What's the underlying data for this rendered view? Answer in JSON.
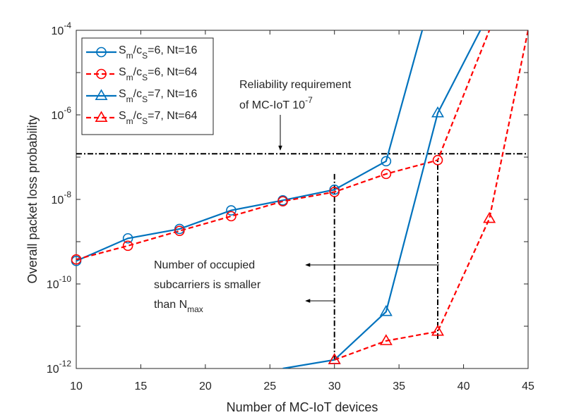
{
  "chart_data": {
    "type": "line",
    "title": "",
    "xlabel": "Number of MC-IoT devices",
    "ylabel": "Overall packet loss probability",
    "xlim": [
      10,
      45
    ],
    "ylim": [
      1e-12,
      0.0001
    ],
    "yscale": "log",
    "grid": false,
    "legend_position": "top-left",
    "x_ticks": [
      "10",
      "15",
      "20",
      "25",
      "30",
      "35",
      "40",
      "45"
    ],
    "y_ticks": [
      {
        "base": "10",
        "exp": "-12",
        "value": 1e-12
      },
      {
        "base": "10",
        "exp": "-10",
        "value": 1e-10
      },
      {
        "base": "10",
        "exp": "-8",
        "value": 1e-08
      },
      {
        "base": "10",
        "exp": "-6",
        "value": 1e-06
      },
      {
        "base": "10",
        "exp": "-4",
        "value": 0.0001
      }
    ],
    "series": [
      {
        "name": "Sm/cS=6, Nt=16",
        "label": {
          "a": "S",
          "a_sub": "m",
          "b": "/c",
          "b_sub": "S",
          "c": "=6, Nt=16"
        },
        "color": "#0072BD",
        "dash": "solid",
        "marker": "circle",
        "x": [
          10,
          14,
          18,
          22,
          26,
          30,
          34,
          36.8
        ],
        "y": [
          3.5e-10,
          1.2e-09,
          2e-09,
          5.5e-09,
          9.5e-09,
          1.7e-08,
          8e-08,
          0.0001
        ],
        "marker_x": [
          10,
          14,
          18,
          22,
          26,
          30,
          34
        ]
      },
      {
        "name": "Sm/cS=6, Nt=64",
        "label": {
          "a": "S",
          "a_sub": "m",
          "b": "/c",
          "b_sub": "S",
          "c": "=6, Nt=64"
        },
        "color": "#FF0000",
        "dash": "dashed",
        "marker": "circle",
        "x": [
          10,
          14,
          18,
          22,
          26,
          30,
          34,
          38,
          42
        ],
        "y": [
          3.8e-10,
          8e-10,
          1.8e-09,
          4e-09,
          9e-09,
          1.5e-08,
          4e-08,
          8.5e-08,
          0.0001
        ],
        "marker_x": [
          10,
          14,
          18,
          22,
          26,
          30,
          34,
          38
        ]
      },
      {
        "name": "Sm/cS=7, Nt=16",
        "label": {
          "a": "S",
          "a_sub": "m",
          "b": "/c",
          "b_sub": "S",
          "c": "=7, Nt=16"
        },
        "color": "#0072BD",
        "dash": "solid",
        "marker": "triangle",
        "x": [
          26,
          30,
          34,
          38,
          41.3
        ],
        "y": [
          1e-12,
          1.6e-12,
          2.2e-11,
          1.1e-06,
          0.0001
        ],
        "marker_x": [
          30,
          34,
          38
        ]
      },
      {
        "name": "Sm/cS=7, Nt=64",
        "label": {
          "a": "S",
          "a_sub": "m",
          "b": "/c",
          "b_sub": "S",
          "c": "=7, Nt=64"
        },
        "color": "#FF0000",
        "dash": "dashed",
        "marker": "triangle",
        "x": [
          30,
          34,
          38,
          42,
          45
        ],
        "y": [
          1.6e-12,
          4.5e-12,
          7.5e-12,
          3.5e-09,
          0.0001
        ],
        "marker_x": [
          30,
          34,
          38,
          42
        ]
      }
    ],
    "reference_lines": [
      {
        "kind": "horizontal",
        "y": 1.2e-07,
        "x_from": 10,
        "x_to": 45
      },
      {
        "kind": "vertical",
        "x": 30,
        "y_from": 1.6e-12,
        "y_to": 4e-08
      },
      {
        "kind": "vertical",
        "x": 38,
        "y_from": 5e-12,
        "y_to": 8.5e-08
      }
    ],
    "annotations": {
      "reliability_line1": "Reliability requirement",
      "reliability_line2": "of MC-IoT 10",
      "reliability_exp": "-7",
      "subcarrier_line1": "Number of occupied",
      "subcarrier_line2": "subcarriers is smaller",
      "subcarrier_line3": "than N",
      "subcarrier_line3_sub": "max"
    }
  }
}
